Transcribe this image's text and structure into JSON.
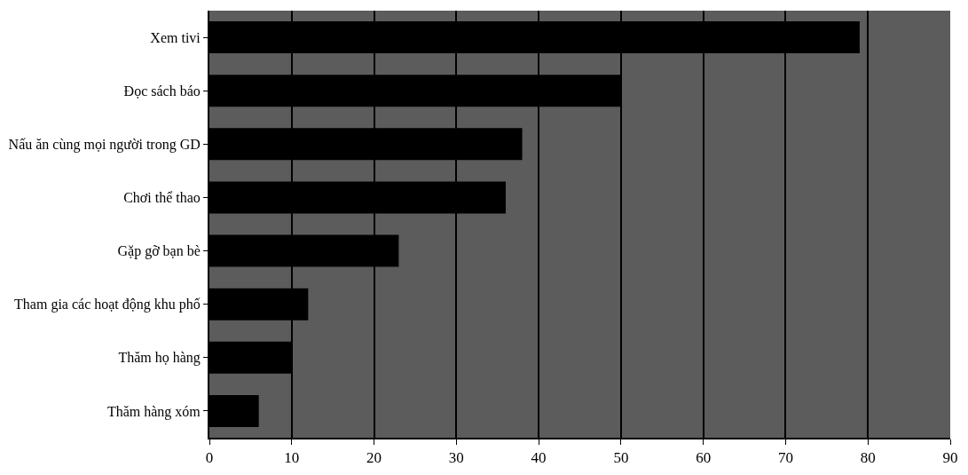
{
  "chart_data": {
    "type": "bar",
    "orientation": "horizontal",
    "categories": [
      "Xem tivi",
      "Đọc sách báo",
      "Nấu ăn cùng mọi người trong GD",
      "Chơi thể thao",
      "Gặp gỡ bạn bè",
      "Tham gia các hoạt động khu phố",
      "Thăm họ hàng",
      "Thăm hàng xóm"
    ],
    "values": [
      79,
      50,
      38,
      36,
      23,
      12,
      10,
      6
    ],
    "color": "#000000",
    "xlim": [
      0,
      90
    ],
    "xticks": [
      0,
      10,
      20,
      30,
      40,
      50,
      60,
      70,
      80,
      90
    ],
    "grid": "x"
  }
}
